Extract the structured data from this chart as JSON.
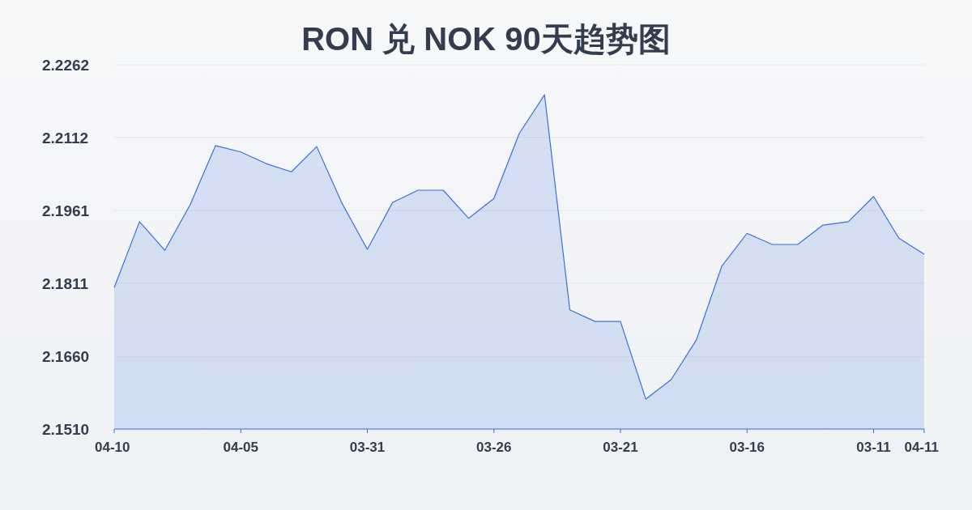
{
  "chart_data": {
    "type": "area",
    "title": "RON 兑 NOK 90天趋势图",
    "categories": [
      "04-10",
      null,
      null,
      null,
      null,
      "04-05",
      null,
      null,
      null,
      null,
      "03-31",
      null,
      null,
      null,
      null,
      "03-26",
      null,
      null,
      null,
      null,
      "03-21",
      null,
      null,
      null,
      null,
      "03-16",
      null,
      null,
      null,
      null,
      "03-11",
      null,
      "04-11"
    ],
    "series": [
      {
        "color": "#3b6fd6",
        "values": [
          2.1802,
          2.1938,
          2.1879,
          2.1973,
          2.2095,
          2.2082,
          2.2058,
          2.2041,
          2.2093,
          2.1976,
          2.1881,
          2.1978,
          2.2003,
          2.2003,
          2.1945,
          2.1986,
          2.212,
          2.22,
          2.1756,
          2.1732,
          2.1732,
          2.1572,
          2.1612,
          2.1694,
          2.1846,
          2.1914,
          2.1891,
          2.1891,
          2.1931,
          2.1938,
          2.199,
          2.1904,
          2.1871
        ]
      }
    ],
    "ylim": [
      2.151,
      2.2262
    ],
    "yticks": [
      {
        "value": 2.151,
        "label": "2.1510"
      },
      {
        "value": 2.166,
        "label": "2.1660"
      },
      2.1811,
      2.1961,
      2.2112,
      2.2262
    ],
    "grid": "y"
  }
}
